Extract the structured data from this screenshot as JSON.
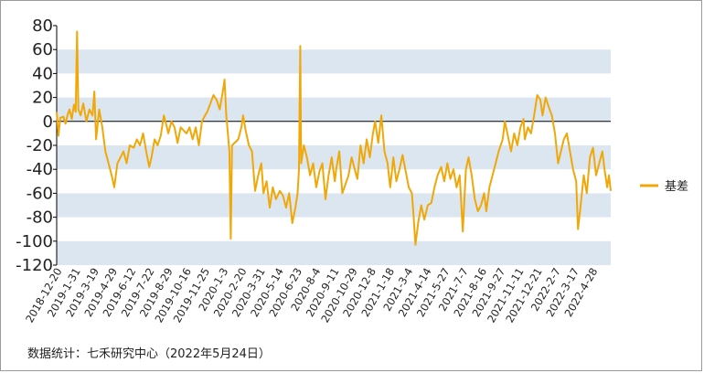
{
  "source_note": "数据统计：七禾研究中心（2022年5月24日）",
  "colors": {
    "series": "#F0A808",
    "band": "#DCE6F1",
    "axis": "#000000",
    "zero": "#000000"
  },
  "chart_data": {
    "type": "line",
    "title": "",
    "xlabel": "",
    "ylabel": "",
    "ylim": [
      -120,
      80
    ],
    "yticks": [
      80,
      60,
      40,
      20,
      0,
      -20,
      -40,
      -60,
      -80,
      -100,
      -120
    ],
    "xlim": [
      "2018-12-20",
      "2022-05-24"
    ],
    "xtick_labels": [
      "2018-12-20",
      "2019-1-31",
      "2019-3-19",
      "2019-4-29",
      "2019-6-12",
      "2019-7-22",
      "2019-8-29",
      "2019-10-16",
      "2019-11-25",
      "2020-1-3",
      "2020-2-20",
      "2020-3-31",
      "2020-5-14",
      "2020-6-23",
      "2020-8-4",
      "2020-9-11",
      "2020-10-29",
      "2020-12-8",
      "2021-1-18",
      "2021-3-4",
      "2021-4-14",
      "2021-5-27",
      "2021-7-7",
      "2021-8-16",
      "2021-9-27",
      "2021-11-11",
      "2021-12-21",
      "2022-2-7",
      "2022-3-17",
      "2022-4-28"
    ],
    "legend": {
      "position": "right",
      "entries": [
        "基差"
      ]
    },
    "series": [
      {
        "name": "基差",
        "points": [
          [
            "2018-12-20",
            8
          ],
          [
            "2018-12-24",
            -12
          ],
          [
            "2018-12-28",
            3
          ],
          [
            "2019-1-4",
            4
          ],
          [
            "2019-1-9",
            -2
          ],
          [
            "2019-1-14",
            6
          ],
          [
            "2019-1-18",
            10
          ],
          [
            "2019-1-23",
            2
          ],
          [
            "2019-1-28",
            14
          ],
          [
            "2019-2-1",
            8
          ],
          [
            "2019-2-4",
            75
          ],
          [
            "2019-2-7",
            10
          ],
          [
            "2019-2-12",
            5
          ],
          [
            "2019-2-18",
            15
          ],
          [
            "2019-2-25",
            0
          ],
          [
            "2019-3-4",
            10
          ],
          [
            "2019-3-11",
            5
          ],
          [
            "2019-3-15",
            25
          ],
          [
            "2019-3-19",
            -15
          ],
          [
            "2019-3-26",
            10
          ],
          [
            "2019-4-2",
            -5
          ],
          [
            "2019-4-9",
            -25
          ],
          [
            "2019-4-16",
            -35
          ],
          [
            "2019-4-23",
            -45
          ],
          [
            "2019-4-29",
            -55
          ],
          [
            "2019-5-6",
            -35
          ],
          [
            "2019-5-13",
            -30
          ],
          [
            "2019-5-20",
            -25
          ],
          [
            "2019-5-27",
            -35
          ],
          [
            "2019-6-3",
            -20
          ],
          [
            "2019-6-12",
            -22
          ],
          [
            "2019-6-19",
            -15
          ],
          [
            "2019-6-26",
            -20
          ],
          [
            "2019-7-3",
            -10
          ],
          [
            "2019-7-10",
            -25
          ],
          [
            "2019-7-17",
            -38
          ],
          [
            "2019-7-22",
            -30
          ],
          [
            "2019-7-29",
            -15
          ],
          [
            "2019-8-5",
            -20
          ],
          [
            "2019-8-12",
            -12
          ],
          [
            "2019-8-19",
            5
          ],
          [
            "2019-8-26",
            -5
          ],
          [
            "2019-8-29",
            -10
          ],
          [
            "2019-9-5",
            0
          ],
          [
            "2019-9-12",
            -5
          ],
          [
            "2019-9-19",
            -18
          ],
          [
            "2019-9-26",
            -5
          ],
          [
            "2019-10-9",
            -10
          ],
          [
            "2019-10-16",
            -5
          ],
          [
            "2019-10-23",
            -15
          ],
          [
            "2019-10-30",
            -5
          ],
          [
            "2019-11-6",
            -20
          ],
          [
            "2019-11-13",
            0
          ],
          [
            "2019-11-20",
            5
          ],
          [
            "2019-11-25",
            8
          ],
          [
            "2019-12-2",
            15
          ],
          [
            "2019-12-9",
            22
          ],
          [
            "2019-12-16",
            18
          ],
          [
            "2019-12-23",
            10
          ],
          [
            "2019-12-30",
            25
          ],
          [
            "2020-1-3",
            35
          ],
          [
            "2020-1-7",
            5
          ],
          [
            "2020-1-10",
            -8
          ],
          [
            "2020-1-14",
            -25
          ],
          [
            "2020-1-17",
            -98
          ],
          [
            "2020-1-20",
            -20
          ],
          [
            "2020-2-3",
            -15
          ],
          [
            "2020-2-10",
            -5
          ],
          [
            "2020-2-14",
            5
          ],
          [
            "2020-2-20",
            -8
          ],
          [
            "2020-2-27",
            -20
          ],
          [
            "2020-3-5",
            -25
          ],
          [
            "2020-3-12",
            -58
          ],
          [
            "2020-3-19",
            -45
          ],
          [
            "2020-3-26",
            -35
          ],
          [
            "2020-3-31",
            -60
          ],
          [
            "2020-4-7",
            -50
          ],
          [
            "2020-4-14",
            -72
          ],
          [
            "2020-4-21",
            -55
          ],
          [
            "2020-4-28",
            -65
          ],
          [
            "2020-5-7",
            -58
          ],
          [
            "2020-5-14",
            -62
          ],
          [
            "2020-5-21",
            -72
          ],
          [
            "2020-5-28",
            -60
          ],
          [
            "2020-6-4",
            -85
          ],
          [
            "2020-6-11",
            -72
          ],
          [
            "2020-6-16",
            -60
          ],
          [
            "2020-6-19",
            -40
          ],
          [
            "2020-6-22",
            63
          ],
          [
            "2020-6-24",
            -35
          ],
          [
            "2020-6-30",
            -20
          ],
          [
            "2020-7-7",
            -30
          ],
          [
            "2020-7-14",
            -45
          ],
          [
            "2020-7-21",
            -35
          ],
          [
            "2020-7-28",
            -55
          ],
          [
            "2020-8-4",
            -42
          ],
          [
            "2020-8-11",
            -35
          ],
          [
            "2020-8-18",
            -65
          ],
          [
            "2020-8-25",
            -45
          ],
          [
            "2020-9-1",
            -30
          ],
          [
            "2020-9-8",
            -50
          ],
          [
            "2020-9-11",
            -40
          ],
          [
            "2020-9-18",
            -25
          ],
          [
            "2020-9-25",
            -60
          ],
          [
            "2020-10-9",
            -45
          ],
          [
            "2020-10-16",
            -30
          ],
          [
            "2020-10-23",
            -40
          ],
          [
            "2020-10-29",
            -48
          ],
          [
            "2020-11-5",
            -20
          ],
          [
            "2020-11-12",
            -35
          ],
          [
            "2020-11-19",
            -15
          ],
          [
            "2020-11-26",
            -30
          ],
          [
            "2020-12-3",
            -10
          ],
          [
            "2020-12-8",
            0
          ],
          [
            "2020-12-15",
            -18
          ],
          [
            "2020-12-22",
            5
          ],
          [
            "2020-12-29",
            -25
          ],
          [
            "2021-1-5",
            -35
          ],
          [
            "2021-1-11",
            -55
          ],
          [
            "2021-1-18",
            -30
          ],
          [
            "2021-1-25",
            -50
          ],
          [
            "2021-2-1",
            -40
          ],
          [
            "2021-2-8",
            -28
          ],
          [
            "2021-2-22",
            -55
          ],
          [
            "2021-3-1",
            -60
          ],
          [
            "2021-3-4",
            -75
          ],
          [
            "2021-3-9",
            -103
          ],
          [
            "2021-3-15",
            -85
          ],
          [
            "2021-3-22",
            -70
          ],
          [
            "2021-3-29",
            -82
          ],
          [
            "2021-4-6",
            -70
          ],
          [
            "2021-4-14",
            -68
          ],
          [
            "2021-4-21",
            -55
          ],
          [
            "2021-4-28",
            -45
          ],
          [
            "2021-5-6",
            -38
          ],
          [
            "2021-5-13",
            -50
          ],
          [
            "2021-5-20",
            -35
          ],
          [
            "2021-5-27",
            -48
          ],
          [
            "2021-6-3",
            -40
          ],
          [
            "2021-6-10",
            -55
          ],
          [
            "2021-6-17",
            -45
          ],
          [
            "2021-6-24",
            -92
          ],
          [
            "2021-7-1",
            -40
          ],
          [
            "2021-7-7",
            -30
          ],
          [
            "2021-7-14",
            -45
          ],
          [
            "2021-7-21",
            -65
          ],
          [
            "2021-7-28",
            -75
          ],
          [
            "2021-8-4",
            -70
          ],
          [
            "2021-8-11",
            -60
          ],
          [
            "2021-8-16",
            -75
          ],
          [
            "2021-8-23",
            -55
          ],
          [
            "2021-8-30",
            -45
          ],
          [
            "2021-9-6",
            -35
          ],
          [
            "2021-9-13",
            -25
          ],
          [
            "2021-9-22",
            -15
          ],
          [
            "2021-9-27",
            0
          ],
          [
            "2021-10-11",
            -25
          ],
          [
            "2021-10-18",
            -10
          ],
          [
            "2021-10-25",
            -20
          ],
          [
            "2021-11-1",
            -5
          ],
          [
            "2021-11-8",
            2
          ],
          [
            "2021-11-11",
            -15
          ],
          [
            "2021-11-18",
            -5
          ],
          [
            "2021-11-25",
            -10
          ],
          [
            "2021-12-2",
            5
          ],
          [
            "2021-12-9",
            22
          ],
          [
            "2021-12-16",
            18
          ],
          [
            "2021-12-21",
            5
          ],
          [
            "2021-12-28",
            20
          ],
          [
            "2022-1-4",
            12
          ],
          [
            "2022-1-11",
            5
          ],
          [
            "2022-1-18",
            -10
          ],
          [
            "2022-1-25",
            -35
          ],
          [
            "2022-2-7",
            -15
          ],
          [
            "2022-2-14",
            -10
          ],
          [
            "2022-2-21",
            -25
          ],
          [
            "2022-2-28",
            -40
          ],
          [
            "2022-3-7",
            -50
          ],
          [
            "2022-3-11",
            -90
          ],
          [
            "2022-3-17",
            -70
          ],
          [
            "2022-3-24",
            -45
          ],
          [
            "2022-3-31",
            -60
          ],
          [
            "2022-4-7",
            -30
          ],
          [
            "2022-4-14",
            -22
          ],
          [
            "2022-4-21",
            -45
          ],
          [
            "2022-4-28",
            -35
          ],
          [
            "2022-5-5",
            -25
          ],
          [
            "2022-5-10",
            -40
          ],
          [
            "2022-5-16",
            -55
          ],
          [
            "2022-5-20",
            -45
          ],
          [
            "2022-5-24",
            -58
          ]
        ]
      }
    ]
  }
}
